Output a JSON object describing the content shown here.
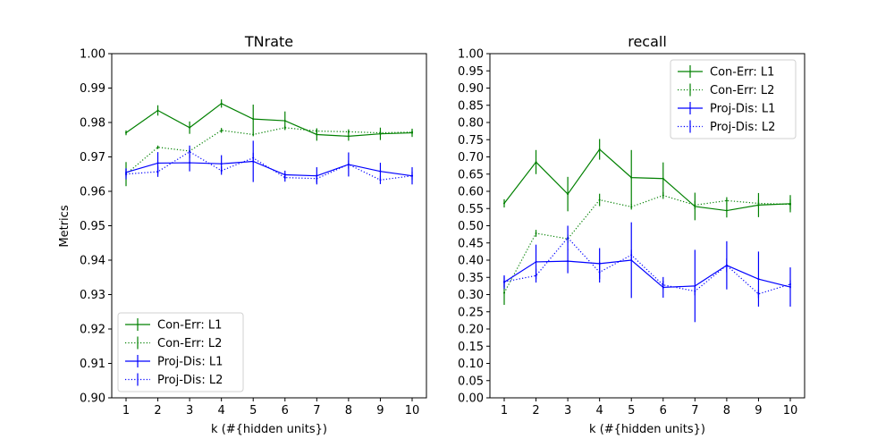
{
  "chart_data": [
    {
      "type": "line",
      "title": "TNrate",
      "xlabel": "k (#{hidden units})",
      "ylabel": "Metrics",
      "x": [
        1,
        2,
        3,
        4,
        5,
        6,
        7,
        8,
        9,
        10
      ],
      "xticks": [
        "1",
        "2",
        "3",
        "4",
        "5",
        "6",
        "7",
        "8",
        "9",
        "10"
      ],
      "ylim": [
        0.9,
        1.0
      ],
      "yticks": [
        "0.90",
        "0.91",
        "0.92",
        "0.93",
        "0.94",
        "0.95",
        "0.96",
        "0.97",
        "0.98",
        "0.99",
        "1.00"
      ],
      "legend_position": "lower-left",
      "series": [
        {
          "name": "Con-Err: L1",
          "color": "#008000",
          "style": "solid",
          "values": [
            0.977,
            0.9835,
            0.9785,
            0.9855,
            0.981,
            0.9805,
            0.9765,
            0.976,
            0.9767,
            0.977
          ],
          "errors": [
            0.0007,
            0.0015,
            0.0018,
            0.0012,
            0.0042,
            0.0027,
            0.0018,
            0.0013,
            0.0018,
            0.0012
          ]
        },
        {
          "name": "Con-Err: L2",
          "color": "#008000",
          "style": "dotted",
          "values": [
            0.965,
            0.9728,
            0.9717,
            0.9777,
            0.9765,
            0.9785,
            0.9775,
            0.9773,
            0.977,
            0.9772
          ],
          "errors": [
            0.0035,
            0.0005,
            0.0007,
            0.0007,
            0.0005,
            0.0005,
            0.0007,
            0.0007,
            0.0006,
            0.0006
          ]
        },
        {
          "name": "Proj-Dis: L1",
          "color": "#0000ff",
          "style": "solid",
          "values": [
            0.9655,
            0.9682,
            0.9683,
            0.968,
            0.9687,
            0.9648,
            0.9645,
            0.9678,
            0.9658,
            0.9645
          ],
          "errors": [
            0.0012,
            0.0032,
            0.0025,
            0.0025,
            0.006,
            0.0012,
            0.0025,
            0.0035,
            0.0025,
            0.0025
          ]
        },
        {
          "name": "Proj-Dis: L2",
          "color": "#0000ff",
          "style": "dotted",
          "values": [
            0.965,
            0.9657,
            0.9715,
            0.966,
            0.9697,
            0.964,
            0.9637,
            0.9678,
            0.9633,
            0.9645
          ],
          "errors": [
            0.0015,
            0.0015,
            0.0018,
            0.0012,
            0.0015,
            0.0012,
            0.0012,
            0.0012,
            0.0012,
            0.0012
          ]
        }
      ]
    },
    {
      "type": "line",
      "title": "recall",
      "xlabel": "k (#{hidden units})",
      "ylabel": "",
      "x": [
        1,
        2,
        3,
        4,
        5,
        6,
        7,
        8,
        9,
        10
      ],
      "xticks": [
        "1",
        "2",
        "3",
        "4",
        "5",
        "6",
        "7",
        "8",
        "9",
        "10"
      ],
      "ylim": [
        0.0,
        1.0
      ],
      "yticks": [
        "0.00",
        "0.05",
        "0.10",
        "0.15",
        "0.20",
        "0.25",
        "0.30",
        "0.35",
        "0.40",
        "0.45",
        "0.50",
        "0.55",
        "0.60",
        "0.65",
        "0.70",
        "0.75",
        "0.80",
        "0.85",
        "0.90",
        "0.95",
        "1.00"
      ],
      "legend_position": "upper-right",
      "series": [
        {
          "name": "Con-Err: L1",
          "color": "#008000",
          "style": "solid",
          "values": [
            0.565,
            0.685,
            0.592,
            0.722,
            0.64,
            0.637,
            0.556,
            0.544,
            0.56,
            0.564
          ],
          "errors": [
            0.012,
            0.035,
            0.05,
            0.03,
            0.08,
            0.047,
            0.04,
            0.02,
            0.035,
            0.025
          ]
        },
        {
          "name": "Con-Err: L2",
          "color": "#008000",
          "style": "dotted",
          "values": [
            0.305,
            0.478,
            0.462,
            0.575,
            0.555,
            0.588,
            0.56,
            0.573,
            0.565,
            0.562
          ],
          "errors": [
            0.035,
            0.01,
            0.012,
            0.018,
            0.008,
            0.01,
            0.012,
            0.01,
            0.01,
            0.015
          ]
        },
        {
          "name": "Proj-Dis: L1",
          "color": "#0000ff",
          "style": "solid",
          "values": [
            0.336,
            0.395,
            0.397,
            0.39,
            0.4,
            0.321,
            0.325,
            0.385,
            0.345,
            0.322
          ],
          "errors": [
            0.02,
            0.05,
            0.035,
            0.045,
            0.11,
            0.03,
            0.105,
            0.07,
            0.08,
            0.057
          ]
        },
        {
          "name": "Proj-Dis: L2",
          "color": "#0000ff",
          "style": "dotted",
          "values": [
            0.337,
            0.355,
            0.465,
            0.365,
            0.415,
            0.328,
            0.31,
            0.385,
            0.302,
            0.33
          ],
          "errors": [
            0.015,
            0.02,
            0.035,
            0.03,
            0.015,
            0.012,
            0.012,
            0.02,
            0.012,
            0.012
          ]
        }
      ]
    }
  ]
}
